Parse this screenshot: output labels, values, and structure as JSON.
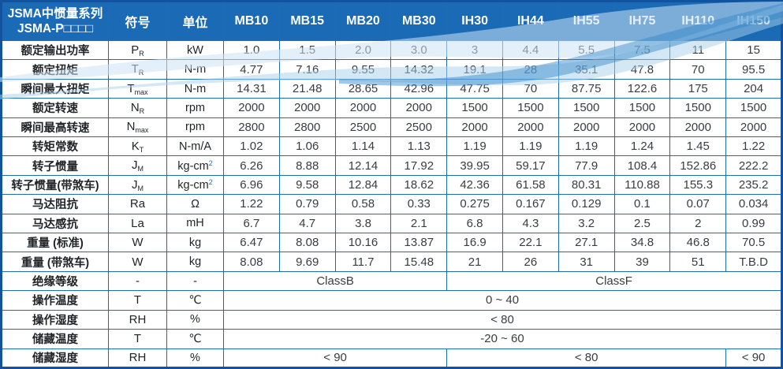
{
  "colors": {
    "header_bg": "#1a6ab5",
    "grid_border": "#1e6cb2",
    "outer_border": "#11539f",
    "body_text": "#383d44",
    "wave_light": "#aacfe9",
    "wave_strong": "#2f86c7"
  },
  "header": {
    "title_line1": "JSMA中惯量系列",
    "title_line2": "JSMA-P□□□□",
    "symbol": "符号",
    "unit": "单位",
    "models": [
      "MB10",
      "MB15",
      "MB20",
      "MB30",
      "IH30",
      "IH44",
      "IH55",
      "IH75",
      "IH110",
      "IH150"
    ]
  },
  "rows": [
    {
      "label": "额定输出功率",
      "sym": "P",
      "sym_sub": "R",
      "unit": "kW",
      "values": [
        "1.0",
        "1.5",
        "2.0",
        "3.0",
        "3",
        "4.4",
        "5.5",
        "7.5",
        "11",
        "15"
      ]
    },
    {
      "label": "额定扭矩",
      "sym": "T",
      "sym_sub": "R",
      "unit": "N-m",
      "values": [
        "4.77",
        "7.16",
        "9.55",
        "14.32",
        "19.1",
        "28",
        "35.1",
        "47.8",
        "70",
        "95.5"
      ]
    },
    {
      "label": "瞬间最大扭矩",
      "sym": "T",
      "sym_sub": "max",
      "unit": "N-m",
      "values": [
        "14.31",
        "21.48",
        "28.65",
        "42.96",
        "47.75",
        "70",
        "87.75",
        "122.6",
        "175",
        "204"
      ]
    },
    {
      "label": "额定转速",
      "sym": "N",
      "sym_sub": "R",
      "unit": "rpm",
      "values": [
        "2000",
        "2000",
        "2000",
        "2000",
        "1500",
        "1500",
        "1500",
        "1500",
        "1500",
        "1500"
      ]
    },
    {
      "label": "瞬间最高转速",
      "sym": "N",
      "sym_sub": "max",
      "unit": "rpm",
      "values": [
        "2800",
        "2800",
        "2500",
        "2500",
        "2000",
        "2000",
        "2000",
        "2000",
        "2000",
        "2000"
      ]
    },
    {
      "label": "转矩常数",
      "sym": "K",
      "sym_sub": "T",
      "unit": "N-m/A",
      "values": [
        "1.02",
        "1.06",
        "1.14",
        "1.13",
        "1.19",
        "1.19",
        "1.19",
        "1.24",
        "1.45",
        "1.22"
      ]
    },
    {
      "label": "转子惯量",
      "sym": "J",
      "sym_sub": "M",
      "unit": "kg-cm",
      "unit_sup": "2",
      "values": [
        "6.26",
        "8.88",
        "12.14",
        "17.92",
        "39.95",
        "59.17",
        "77.9",
        "108.4",
        "152.86",
        "222.2"
      ]
    },
    {
      "label": "转子惯量(带煞车)",
      "sym": "J",
      "sym_sub": "M",
      "unit": "kg-cm",
      "unit_sup": "2",
      "values": [
        "6.96",
        "9.58",
        "12.84",
        "18.62",
        "42.36",
        "61.58",
        "80.31",
        "110.88",
        "155.3",
        "235.2"
      ]
    },
    {
      "label": "马达阻抗",
      "sym": "Ra",
      "unit": "Ω",
      "values": [
        "1.22",
        "0.79",
        "0.58",
        "0.33",
        "0.275",
        "0.167",
        "0.129",
        "0.1",
        "0.07",
        "0.034"
      ]
    },
    {
      "label": "马达感抗",
      "sym": "La",
      "unit": "mH",
      "values": [
        "6.7",
        "4.7",
        "3.8",
        "2.1",
        "6.8",
        "4.3",
        "3.2",
        "2.5",
        "2",
        "0.99"
      ]
    },
    {
      "label": "重量 (标准)",
      "sym": "W",
      "unit": "kg",
      "values": [
        "6.47",
        "8.08",
        "10.16",
        "13.87",
        "16.9",
        "22.1",
        "27.1",
        "34.8",
        "46.8",
        "70.5"
      ]
    },
    {
      "label": "重量 (带煞车)",
      "sym": "W",
      "unit": "kg",
      "values": [
        "8.08",
        "9.69",
        "11.7",
        "15.48",
        "21",
        "26",
        "31",
        "39",
        "51",
        "T.B.D"
      ]
    },
    {
      "label": "绝缘等级",
      "sym": "-",
      "unit": "-",
      "spans": [
        {
          "text": "ClassB",
          "cols": 4
        },
        {
          "text": "ClassF",
          "cols": 6
        }
      ]
    },
    {
      "label": "操作温度",
      "sym": "T",
      "unit": "℃",
      "spans": [
        {
          "text": "0 ~ 40",
          "cols": 10
        }
      ]
    },
    {
      "label": "操作湿度",
      "sym": "RH",
      "unit": "%",
      "spans": [
        {
          "text": "< 80",
          "cols": 10
        }
      ]
    },
    {
      "label": "储藏温度",
      "sym": "T",
      "unit": "℃",
      "spans": [
        {
          "text": "-20 ~ 60",
          "cols": 10
        }
      ]
    },
    {
      "label": "储藏湿度",
      "sym": "RH",
      "unit": "%",
      "spans": [
        {
          "text": "< 90",
          "cols": 4
        },
        {
          "text": "< 80",
          "cols": 5
        },
        {
          "text": "< 90",
          "cols": 1
        }
      ]
    }
  ]
}
